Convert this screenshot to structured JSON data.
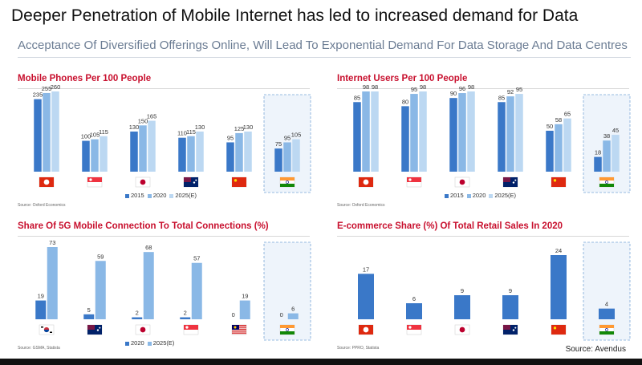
{
  "header": {
    "title": "Deeper Penetration of Mobile Internet has led to increased demand for Data",
    "subtitle": "Acceptance Of Diversified Offerings Online, Will Lead To Exponential Demand For Data Storage And Data Centres"
  },
  "footer": {
    "source": "Source: Avendus"
  },
  "colors": {
    "dark": "#3a78c8",
    "mid": "#8ab8e6",
    "light": "#bcd8f2",
    "accent": "#c8102e"
  },
  "flags": [
    "hong-kong-flag",
    "singapore-flag",
    "japan-flag",
    "australia-flag",
    "china-flag",
    "india-flag",
    "south-korea-flag",
    "malaysia-flag"
  ],
  "chart_data": [
    {
      "type": "bar",
      "title": "Mobile Phones Per 100 People",
      "categories": [
        "Hong Kong",
        "Singapore",
        "Japan",
        "Australia",
        "China",
        "India"
      ],
      "series": [
        {
          "name": "2015",
          "values": [
            235,
            100,
            130,
            110,
            95,
            75
          ]
        },
        {
          "name": "2020",
          "values": [
            255,
            105,
            150,
            115,
            125,
            95
          ]
        },
        {
          "name": "2025(E)",
          "values": [
            260,
            115,
            165,
            130,
            130,
            105
          ]
        }
      ],
      "highlight": "India",
      "legend_position": "bottom-right",
      "source": "Source: Oxford Economics"
    },
    {
      "type": "bar",
      "title": "Internet Users Per 100 People",
      "categories": [
        "Hong Kong",
        "Singapore",
        "Japan",
        "Australia",
        "China",
        "India"
      ],
      "series": [
        {
          "name": "2015",
          "values": [
            85,
            80,
            90,
            85,
            50,
            18
          ]
        },
        {
          "name": "2020",
          "values": [
            98,
            95,
            96,
            92,
            58,
            38
          ]
        },
        {
          "name": "2025(E)",
          "values": [
            98,
            98,
            98,
            95,
            65,
            45
          ]
        }
      ],
      "highlight": "India",
      "legend_position": "bottom-right",
      "source": "Source: Oxford Economics"
    },
    {
      "type": "bar",
      "title": "Share Of 5G Mobile Connection To Total Connections (%)",
      "categories": [
        "South Korea",
        "Australia",
        "Japan",
        "Singapore",
        "Malaysia",
        "India"
      ],
      "series": [
        {
          "name": "2020",
          "values": [
            19,
            5,
            2,
            2,
            0,
            0
          ]
        },
        {
          "name": "2025(E)",
          "values": [
            73,
            59,
            68,
            57,
            19,
            6
          ]
        }
      ],
      "highlight": "India",
      "legend_position": "bottom",
      "source": "Source: GSMA, Statista"
    },
    {
      "type": "bar",
      "title": "E-commerce Share (%) Of Total Retail Sales In 2020",
      "categories": [
        "Hong Kong",
        "Singapore",
        "Japan",
        "Australia",
        "China",
        "India"
      ],
      "series": [
        {
          "values": [
            17,
            6,
            9,
            9,
            24,
            4
          ]
        }
      ],
      "highlight": "India",
      "source": "Source: PPRO, Statista"
    }
  ]
}
